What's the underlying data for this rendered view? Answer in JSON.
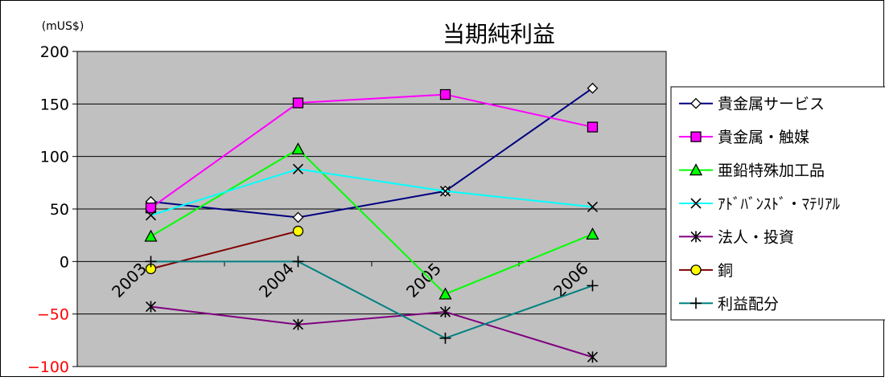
{
  "chart_data": {
    "type": "line",
    "title": "当期純利益",
    "unit_label": "(mUS$)",
    "categories": [
      "2003",
      "2004",
      "2005",
      "2006"
    ],
    "ylim": [
      -100,
      200
    ],
    "yticks": [
      200,
      150,
      100,
      50,
      0,
      -50,
      -100
    ],
    "grid": true,
    "legend_position": "right",
    "plot_background": "#c0c0c0",
    "series": [
      {
        "name": "貴金属サービス",
        "values": [
          57,
          42,
          67,
          165
        ],
        "color": "#000080",
        "marker": "diamond",
        "marker_fill": "#ffffff"
      },
      {
        "name": "貴金属・触媒",
        "values": [
          51,
          151,
          159,
          128
        ],
        "color": "#ff00ff",
        "marker": "square",
        "marker_fill": "#ff00ff"
      },
      {
        "name": "亜鉛特殊加工品",
        "values": [
          24,
          107,
          -31,
          26
        ],
        "color": "#00ff00",
        "marker": "triangle",
        "marker_fill": "#00ff00"
      },
      {
        "name": "ｱﾄﾞﾊﾞﾝｽﾄﾞ・ﾏﾃﾘｱﾙ",
        "values": [
          44,
          88,
          67,
          52
        ],
        "color": "#00ffff",
        "marker": "x",
        "marker_fill": "none"
      },
      {
        "name": "法人・投資",
        "values": [
          -43,
          -60,
          -48,
          -91
        ],
        "color": "#800080",
        "marker": "asterisk",
        "marker_fill": "none"
      },
      {
        "name": "銅",
        "values": [
          -7,
          29,
          null,
          null
        ],
        "color": "#800000",
        "marker": "circle",
        "marker_fill": "#ffff00"
      },
      {
        "name": "利益配分",
        "values": [
          0,
          0,
          -73,
          -23
        ],
        "color": "#008080",
        "marker": "plus",
        "marker_fill": "none"
      }
    ]
  }
}
